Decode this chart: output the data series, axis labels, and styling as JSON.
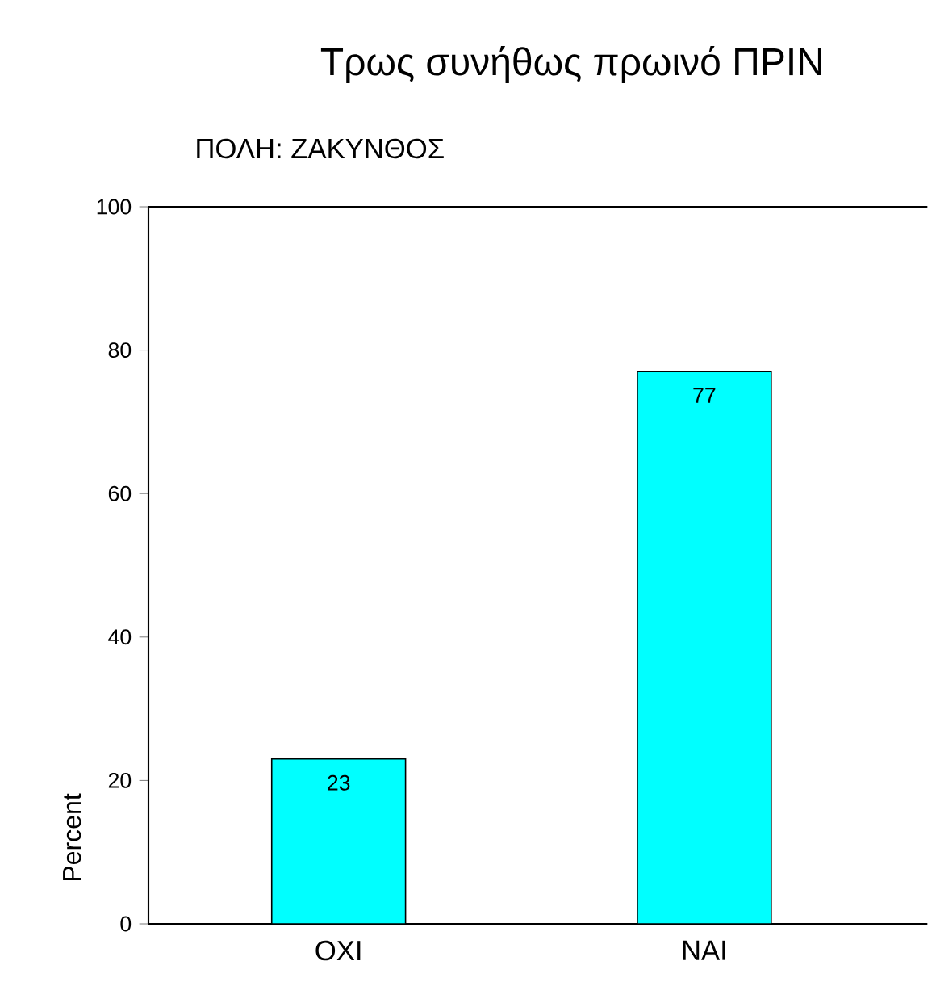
{
  "chart_data": {
    "type": "bar",
    "title": "Τρως συνήθως πρωινό ΠΡΙΝ",
    "subtitle": "ΠΟΛΗ: ΖΑΚΥΝΘΟΣ",
    "ylabel": "Percent",
    "categories": [
      "ΟΧΙ",
      "ΝΑΙ"
    ],
    "values": [
      23,
      77
    ],
    "color": "#00ffff",
    "ylim": [
      0,
      100
    ],
    "yticks": [
      0,
      20,
      40,
      60,
      80,
      100
    ],
    "data_labels": true,
    "grid": false
  }
}
